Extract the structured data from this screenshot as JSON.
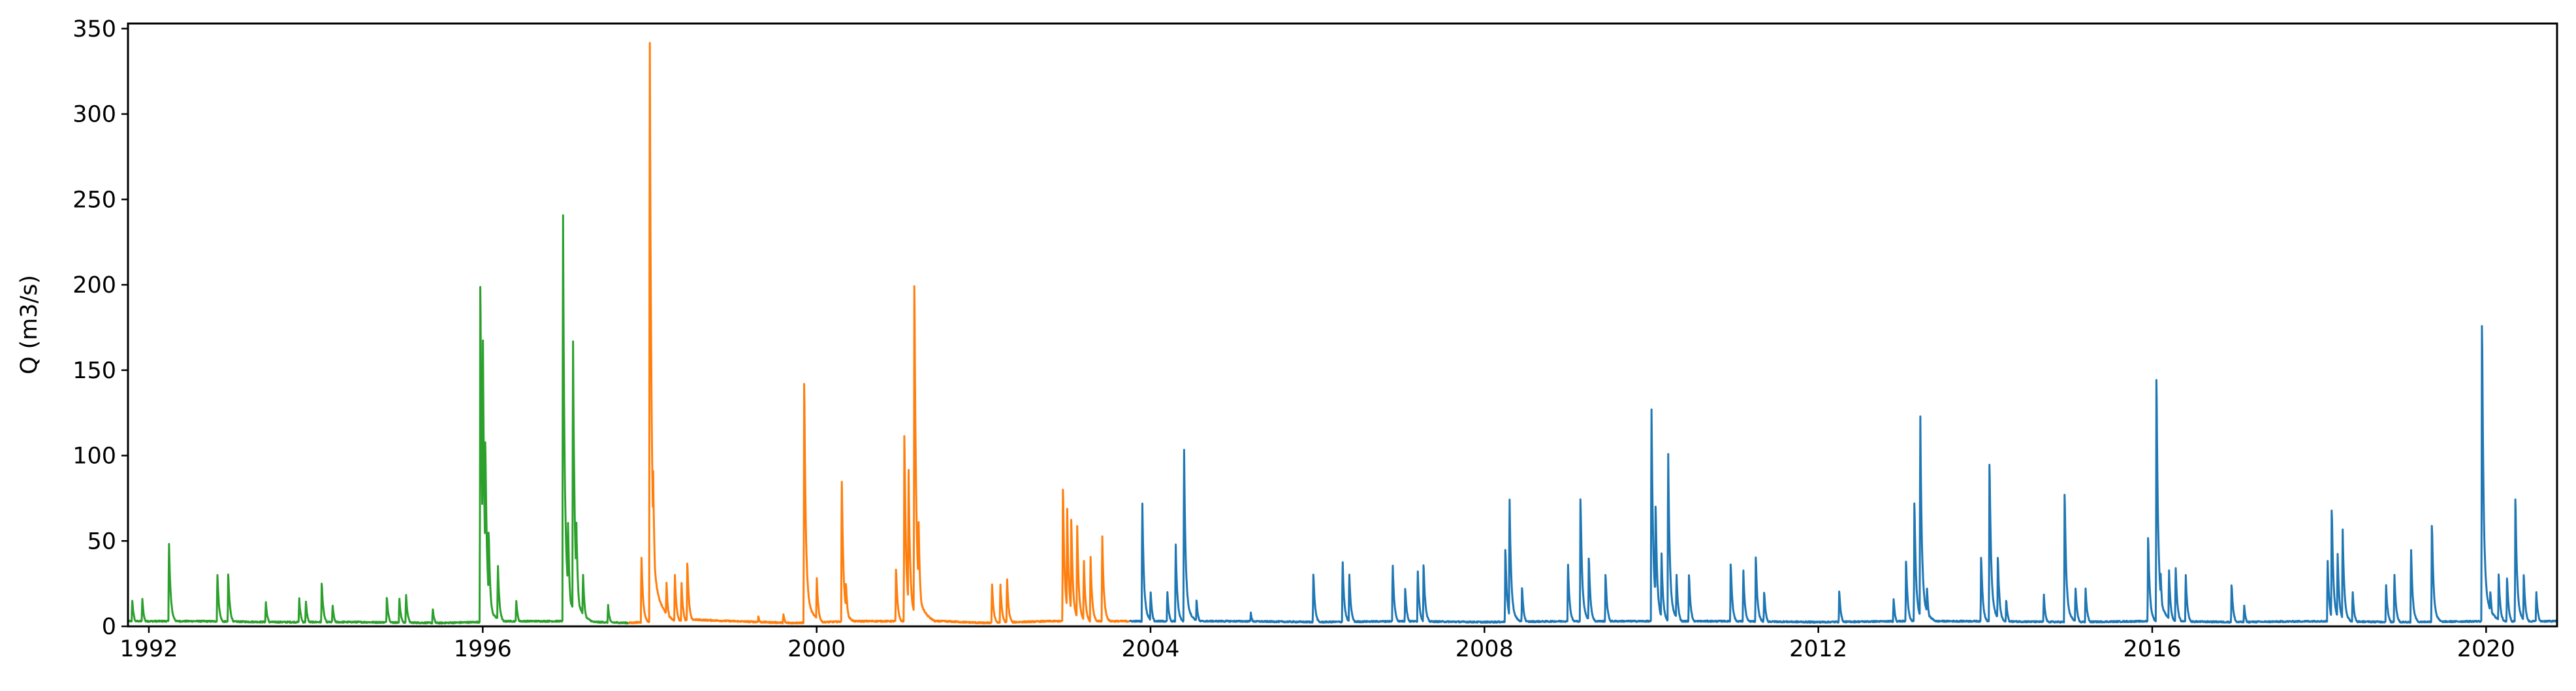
{
  "chart_data": {
    "type": "line",
    "title": "",
    "xlabel": "",
    "ylabel": "Q (m3/s)",
    "xlim": [
      1991.75,
      2020.85
    ],
    "ylim": [
      0,
      353
    ],
    "grid": false,
    "legend": "none",
    "x_ticks": [
      {
        "value": 1992,
        "label": "1992"
      },
      {
        "value": 1996,
        "label": "1996"
      },
      {
        "value": 2000,
        "label": "2000"
      },
      {
        "value": 2004,
        "label": "2004"
      },
      {
        "value": 2008,
        "label": "2008"
      },
      {
        "value": 2012,
        "label": "2012"
      },
      {
        "value": 2016,
        "label": "2016"
      },
      {
        "value": 2020,
        "label": "2020"
      }
    ],
    "y_ticks": [
      {
        "value": 0,
        "label": "0"
      },
      {
        "value": 50,
        "label": "50"
      },
      {
        "value": 100,
        "label": "100"
      },
      {
        "value": 150,
        "label": "150"
      },
      {
        "value": 200,
        "label": "200"
      },
      {
        "value": 250,
        "label": "250"
      },
      {
        "value": 300,
        "label": "300"
      },
      {
        "value": 350,
        "label": "350"
      }
    ],
    "series": [
      {
        "color": "#2ca02c",
        "x_range": [
          1991.75,
          1997.75
        ],
        "base": [
          [
            1991.75,
            3
          ],
          [
            1992.6,
            3
          ],
          [
            1993.5,
            2.5
          ],
          [
            1994.5,
            2.5
          ],
          [
            1995.5,
            2
          ],
          [
            1995.95,
            2.5
          ],
          [
            1996.3,
            3
          ],
          [
            1997.0,
            3
          ],
          [
            1997.75,
            2
          ]
        ],
        "peaks": [
          [
            1991.8,
            15
          ],
          [
            1991.92,
            16
          ],
          [
            1992.24,
            48
          ],
          [
            1992.82,
            30
          ],
          [
            1992.95,
            30
          ],
          [
            1993.4,
            14
          ],
          [
            1993.8,
            16
          ],
          [
            1993.88,
            14
          ],
          [
            1994.07,
            25
          ],
          [
            1994.2,
            12
          ],
          [
            1994.85,
            17
          ],
          [
            1995.0,
            16
          ],
          [
            1995.08,
            18
          ],
          [
            1995.4,
            10
          ],
          [
            1995.97,
            199
          ],
          [
            1996.0,
            165
          ],
          [
            1996.03,
            108
          ],
          [
            1996.07,
            55
          ],
          [
            1996.18,
            35
          ],
          [
            1996.4,
            15
          ],
          [
            1996.96,
            238
          ],
          [
            1997.02,
            60
          ],
          [
            1997.08,
            165
          ],
          [
            1997.12,
            60
          ],
          [
            1997.2,
            30
          ],
          [
            1997.5,
            12
          ]
        ]
      },
      {
        "color": "#ff7f0e",
        "x_range": [
          1997.75,
          2003.75
        ],
        "base": [
          [
            1997.75,
            2
          ],
          [
            1998.5,
            4
          ],
          [
            1999.0,
            3
          ],
          [
            1999.7,
            2
          ],
          [
            2000.5,
            3
          ],
          [
            2001.5,
            3
          ],
          [
            2002.0,
            2
          ],
          [
            2002.8,
            3
          ],
          [
            2003.75,
            3
          ]
        ],
        "peaks": [
          [
            1997.9,
            40
          ],
          [
            1998.0,
            337
          ],
          [
            1998.04,
            90
          ],
          [
            1998.2,
            25
          ],
          [
            1998.3,
            30
          ],
          [
            1998.38,
            25
          ],
          [
            1998.45,
            37
          ],
          [
            1999.3,
            6
          ],
          [
            1999.6,
            7
          ],
          [
            1999.85,
            142
          ],
          [
            2000.0,
            28
          ],
          [
            2000.3,
            84
          ],
          [
            2000.35,
            25
          ],
          [
            2000.95,
            33
          ],
          [
            2001.05,
            111
          ],
          [
            2001.1,
            90
          ],
          [
            2001.17,
            199
          ],
          [
            2001.22,
            60
          ],
          [
            2002.1,
            24
          ],
          [
            2002.2,
            24
          ],
          [
            2002.28,
            27
          ],
          [
            2002.95,
            80
          ],
          [
            2003.0,
            68
          ],
          [
            2003.05,
            62
          ],
          [
            2003.12,
            58
          ],
          [
            2003.2,
            38
          ],
          [
            2003.28,
            40
          ],
          [
            2003.42,
            52
          ]
        ]
      },
      {
        "color": "#1f77b4",
        "x_range": [
          2003.75,
          2020.85
        ],
        "base": [
          [
            2003.75,
            3
          ],
          [
            2005.0,
            3
          ],
          [
            2006.0,
            2.5
          ],
          [
            2007.0,
            3
          ],
          [
            2008.0,
            2.5
          ],
          [
            2009.0,
            3
          ],
          [
            2010.0,
            3
          ],
          [
            2011.0,
            3
          ],
          [
            2012.0,
            2.5
          ],
          [
            2013.0,
            3
          ],
          [
            2014.0,
            3
          ],
          [
            2015.0,
            2.5
          ],
          [
            2016.0,
            3
          ],
          [
            2017.0,
            2.5
          ],
          [
            2018.0,
            3
          ],
          [
            2019.0,
            2.5
          ],
          [
            2020.0,
            3
          ],
          [
            2020.85,
            3
          ]
        ],
        "peaks": [
          [
            2003.9,
            71
          ],
          [
            2004.0,
            20
          ],
          [
            2004.2,
            20
          ],
          [
            2004.3,
            47
          ],
          [
            2004.4,
            102
          ],
          [
            2004.55,
            15
          ],
          [
            2005.2,
            8
          ],
          [
            2005.95,
            30
          ],
          [
            2006.3,
            37
          ],
          [
            2006.38,
            30
          ],
          [
            2006.9,
            35
          ],
          [
            2007.05,
            22
          ],
          [
            2007.2,
            32
          ],
          [
            2007.27,
            36
          ],
          [
            2008.25,
            45
          ],
          [
            2008.3,
            73
          ],
          [
            2008.45,
            22
          ],
          [
            2009.0,
            36
          ],
          [
            2009.15,
            74
          ],
          [
            2009.25,
            40
          ],
          [
            2009.45,
            30
          ],
          [
            2010.0,
            125
          ],
          [
            2010.05,
            70
          ],
          [
            2010.12,
            42
          ],
          [
            2010.2,
            100
          ],
          [
            2010.3,
            30
          ],
          [
            2010.45,
            30
          ],
          [
            2010.95,
            36
          ],
          [
            2011.1,
            32
          ],
          [
            2011.25,
            40
          ],
          [
            2011.35,
            20
          ],
          [
            2012.25,
            20
          ],
          [
            2012.9,
            16
          ],
          [
            2013.05,
            38
          ],
          [
            2013.15,
            72
          ],
          [
            2013.22,
            121
          ],
          [
            2013.3,
            22
          ],
          [
            2013.95,
            40
          ],
          [
            2014.05,
            95
          ],
          [
            2014.15,
            40
          ],
          [
            2014.25,
            15
          ],
          [
            2014.7,
            18
          ],
          [
            2014.95,
            77
          ],
          [
            2015.08,
            22
          ],
          [
            2015.2,
            22
          ],
          [
            2015.95,
            52
          ],
          [
            2016.05,
            144
          ],
          [
            2016.1,
            30
          ],
          [
            2016.2,
            32
          ],
          [
            2016.28,
            34
          ],
          [
            2016.4,
            30
          ],
          [
            2016.95,
            24
          ],
          [
            2017.1,
            12
          ],
          [
            2018.1,
            38
          ],
          [
            2018.15,
            68
          ],
          [
            2018.22,
            42
          ],
          [
            2018.28,
            56
          ],
          [
            2018.4,
            20
          ],
          [
            2018.8,
            24
          ],
          [
            2018.9,
            30
          ],
          [
            2019.1,
            44
          ],
          [
            2019.35,
            59
          ],
          [
            2019.95,
            176
          ],
          [
            2020.05,
            20
          ],
          [
            2020.15,
            30
          ],
          [
            2020.25,
            28
          ],
          [
            2020.35,
            74
          ],
          [
            2020.45,
            30
          ],
          [
            2020.6,
            20
          ]
        ]
      }
    ]
  }
}
